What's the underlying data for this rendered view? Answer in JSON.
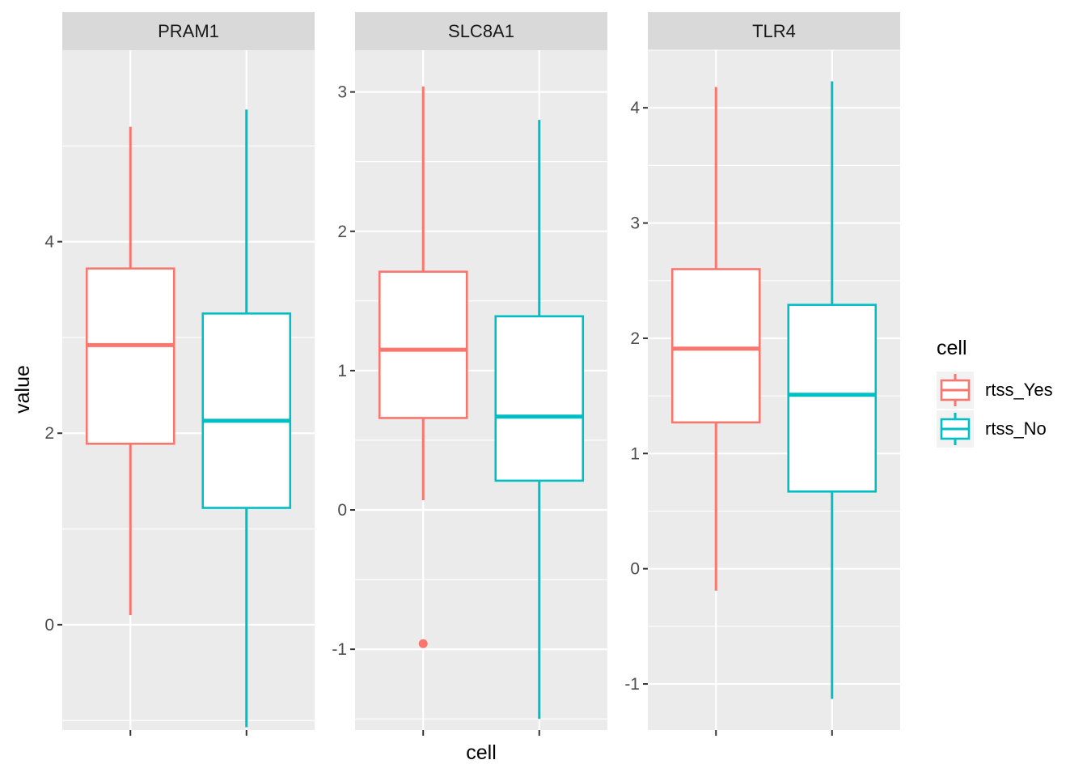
{
  "chart_data": {
    "type": "box",
    "facet_by": "gene",
    "xlabel": "cell",
    "ylabel": "value",
    "legend": {
      "title": "cell",
      "position": "right",
      "entries": [
        {
          "name": "rtss_Yes",
          "color": "#F8766D"
        },
        {
          "name": "rtss_No",
          "color": "#00BFC4"
        }
      ]
    },
    "panel_background": "#EBEBEB",
    "strip_background": "#D9D9D9",
    "grid": true,
    "scales": "free_y",
    "panels": [
      {
        "title": "PRAM1",
        "ylim": [
          -1.1,
          6.0
        ],
        "yticks": [
          0,
          2,
          4
        ],
        "ytick_labels": [
          "0",
          "2",
          "4"
        ],
        "boxes": [
          {
            "group": "rtss_Yes",
            "lower_whisker": 0.1,
            "q1": 1.89,
            "median": 2.92,
            "q3": 3.72,
            "upper_whisker": 5.2,
            "outliers": []
          },
          {
            "group": "rtss_No",
            "lower_whisker": -1.07,
            "q1": 1.22,
            "median": 2.13,
            "q3": 3.25,
            "upper_whisker": 5.38,
            "outliers": []
          }
        ]
      },
      {
        "title": "SLC8A1",
        "ylim": [
          -1.58,
          3.3
        ],
        "yticks": [
          -1,
          0,
          1,
          2,
          3
        ],
        "ytick_labels": [
          "-1",
          "0",
          "1",
          "2",
          "3"
        ],
        "boxes": [
          {
            "group": "rtss_Yes",
            "lower_whisker": 0.07,
            "q1": 0.66,
            "median": 1.15,
            "q3": 1.71,
            "upper_whisker": 3.04,
            "outliers": [
              -0.96
            ]
          },
          {
            "group": "rtss_No",
            "lower_whisker": -1.5,
            "q1": 0.21,
            "median": 0.67,
            "q3": 1.39,
            "upper_whisker": 2.8,
            "outliers": []
          }
        ]
      },
      {
        "title": "TLR4",
        "ylim": [
          -1.4,
          4.5
        ],
        "yticks": [
          -1,
          0,
          1,
          2,
          3,
          4
        ],
        "ytick_labels": [
          "-1",
          "0",
          "1",
          "2",
          "3",
          "4"
        ],
        "boxes": [
          {
            "group": "rtss_Yes",
            "lower_whisker": -0.19,
            "q1": 1.27,
            "median": 1.91,
            "q3": 2.6,
            "upper_whisker": 4.18,
            "outliers": []
          },
          {
            "group": "rtss_No",
            "lower_whisker": -1.13,
            "q1": 0.67,
            "median": 1.51,
            "q3": 2.29,
            "upper_whisker": 4.23,
            "outliers": []
          }
        ]
      }
    ]
  }
}
